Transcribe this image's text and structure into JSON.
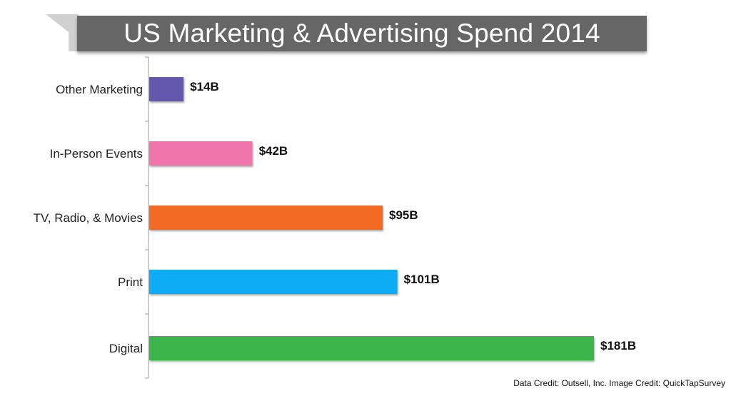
{
  "chart_data": {
    "type": "bar",
    "orientation": "horizontal",
    "title": "US Marketing & Advertising Spend 2014",
    "categories": [
      "Other Marketing",
      "In-Person Events",
      "TV, Radio, & Movies",
      "Print",
      "Digital"
    ],
    "values": [
      14,
      42,
      95,
      101,
      181
    ],
    "value_labels": [
      "$14B",
      "$42B",
      "$95B",
      "$101B",
      "$181B"
    ],
    "colors": [
      "#6459ad",
      "#ef74aa",
      "#f26924",
      "#08acf4",
      "#3ab54a"
    ],
    "xlabel": "",
    "ylabel": "",
    "xlim": [
      0,
      185
    ],
    "grid": false
  },
  "footer": {
    "credit": "Data Credit: Outsell, Inc. Image Credit: QuickTapSurvey"
  }
}
